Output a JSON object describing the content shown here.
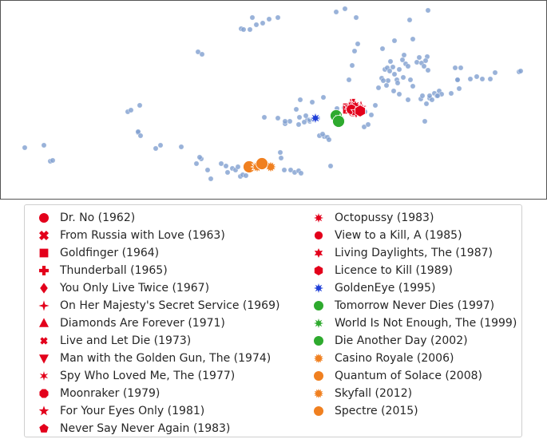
{
  "chart_data": {
    "type": "scatter",
    "title": "",
    "xlabel": "",
    "ylabel": "",
    "xlim": [
      0,
      685
    ],
    "ylim": [
      250,
      0
    ],
    "grid": false,
    "legend_position": "bottom",
    "background_points": {
      "color": "#7f9fd0",
      "x": [
        31,
        55,
        63,
        66,
        160,
        164,
        175,
        173,
        173,
        176,
        201,
        195,
        227,
        248,
        253,
        252,
        260,
        264,
        277,
        283,
        285,
        291,
        295,
        298,
        301,
        304,
        308,
        312,
        250,
        246,
        302,
        305,
        313,
        316,
        321,
        329,
        337,
        348,
        331,
        352,
        351,
        356,
        364,
        369,
        374,
        377,
        385,
        388,
        371,
        374,
        381,
        388,
        392,
        398,
        406,
        410,
        412,
        414,
        400,
        404,
        376,
        391,
        363,
        357,
        348,
        357,
        375,
        383,
        405,
        421,
        432,
        446,
        448,
        444,
        441,
        437,
        431,
        474,
        478,
        482,
        485,
        489,
        492,
        497,
        500,
        504,
        506,
        508,
        511,
        514,
        517,
        522,
        525,
        528,
        531,
        535,
        538,
        541,
        544,
        547,
        550,
        553,
        479,
        486,
        484,
        493,
        498,
        500,
        505,
        494,
        488,
        480,
        511,
        527,
        534,
        529,
        538,
        536,
        533,
        575,
        577,
        589,
        597,
        604,
        614,
        620,
        650,
        652,
        565,
        573,
        532,
        513,
        425,
        422,
        437,
        440,
        457,
        465,
        470,
        456,
        461,
        494,
        536,
        517,
        548,
        570,
        573
      ],
      "y": [
        185,
        182,
        202,
        201,
        140,
        138,
        132,
        166,
        165,
        170,
        182,
        186,
        184,
        65,
        68,
        199,
        213,
        224,
        205,
        208,
        216,
        211,
        213,
        209,
        221,
        219,
        220,
        213,
        197,
        205,
        36,
        37,
        37,
        22,
        31,
        29,
        24,
        22,
        147,
        198,
        191,
        213,
        213,
        216,
        214,
        217,
        150,
        152,
        137,
        156,
        153,
        150,
        150,
        148,
        171,
        172,
        175,
        208,
        170,
        168,
        125,
        128,
        152,
        155,
        148,
        152,
        147,
        145,
        122,
        15,
        11,
        22,
        55,
        64,
        82,
        100,
        135,
        110,
        98,
        87,
        85,
        77,
        84,
        100,
        87,
        75,
        69,
        80,
        83,
        100,
        108,
        78,
        72,
        79,
        83,
        71,
        123,
        125,
        117,
        120,
        114,
        118,
        61,
        101,
        107,
        114,
        104,
        118,
        97,
        93,
        89,
        101,
        125,
        124,
        130,
        120,
        120,
        88,
        76,
        111,
        85,
        99,
        96,
        99,
        99,
        91,
        90,
        89,
        117,
        100,
        152,
        25,
        155,
        136,
        140,
        140,
        140,
        144,
        132,
        159,
        156,
        51,
        13,
        49,
        120,
        85,
        100
      ]
    },
    "films": [
      {
        "label": "Dr. No (1962)",
        "color": "#e3001b",
        "marker": "circle",
        "x": 446,
        "y": 136
      },
      {
        "label": "From Russia with Love (1963)",
        "color": "#e3001b",
        "marker": "x",
        "x": 441,
        "y": 134
      },
      {
        "label": "Goldfinger (1964)",
        "color": "#e3001b",
        "marker": "square",
        "x": 436,
        "y": 136
      },
      {
        "label": "Thunderball (1965)",
        "color": "#e3001b",
        "marker": "plus",
        "x": 443,
        "y": 131
      },
      {
        "label": "You Only Live Twice (1967)",
        "color": "#e3001b",
        "marker": "diamond",
        "x": 448,
        "y": 139
      },
      {
        "label": "On Her Majesty's Secret Service (1969)",
        "color": "#e3001b",
        "marker": "star4",
        "x": 452,
        "y": 133
      },
      {
        "label": "Diamonds Are Forever (1971)",
        "color": "#e3001b",
        "marker": "triangle-up",
        "x": 439,
        "y": 131
      },
      {
        "label": "Live and Let Die (1973)",
        "color": "#e3001b",
        "marker": "x-small",
        "x": 447,
        "y": 134
      },
      {
        "label": "Man with the Golden Gun, The (1974)",
        "color": "#e3001b",
        "marker": "triangle-down",
        "x": 444,
        "y": 138
      },
      {
        "label": "Spy Who Loved Me, The (1977)",
        "color": "#e3001b",
        "marker": "asterisk",
        "x": 450,
        "y": 136
      },
      {
        "label": "Moonraker (1979)",
        "color": "#e3001b",
        "marker": "octagon",
        "x": 442,
        "y": 139
      },
      {
        "label": "For Your Eyes Only (1981)",
        "color": "#e3001b",
        "marker": "star5",
        "x": 438,
        "y": 134
      },
      {
        "label": "Never Say Never Again (1983)",
        "color": "#e3001b",
        "marker": "pentagon",
        "x": 449,
        "y": 140
      },
      {
        "label": "Octopussy (1983)",
        "color": "#e3001b",
        "marker": "star8",
        "x": 445,
        "y": 132
      },
      {
        "label": "View to a Kill, A (1985)",
        "color": "#e3001b",
        "marker": "circle-small",
        "x": 440,
        "y": 137
      },
      {
        "label": "Living Daylights, The (1987)",
        "color": "#e3001b",
        "marker": "star6",
        "x": 446,
        "y": 141
      },
      {
        "label": "Licence to Kill (1989)",
        "color": "#e3001b",
        "marker": "hexagon",
        "x": 451,
        "y": 139
      },
      {
        "label": "GoldenEye (1995)",
        "color": "#1f3fd8",
        "marker": "star8",
        "x": 395,
        "y": 148
      },
      {
        "label": "Tomorrow Never Dies (1997)",
        "color": "#2eaa2e",
        "marker": "circle",
        "x": 421,
        "y": 145
      },
      {
        "label": "World Is Not Enough, The (1999)",
        "color": "#2eaa2e",
        "marker": "star8",
        "x": 426,
        "y": 150
      },
      {
        "label": "Die Another Day (2002)",
        "color": "#2eaa2e",
        "marker": "circle",
        "x": 424,
        "y": 152
      },
      {
        "label": "Casino Royale (2006)",
        "color": "#f08020",
        "marker": "star12",
        "x": 339,
        "y": 209
      },
      {
        "label": "Quantum of Solace (2008)",
        "color": "#f08020",
        "marker": "circle",
        "x": 312,
        "y": 209
      },
      {
        "label": "Skyfall (2012)",
        "color": "#f08020",
        "marker": "star12",
        "x": 322,
        "y": 209
      },
      {
        "label": "Spectre (2015)",
        "color": "#f08020",
        "marker": "circle",
        "x": 328,
        "y": 205
      }
    ]
  }
}
